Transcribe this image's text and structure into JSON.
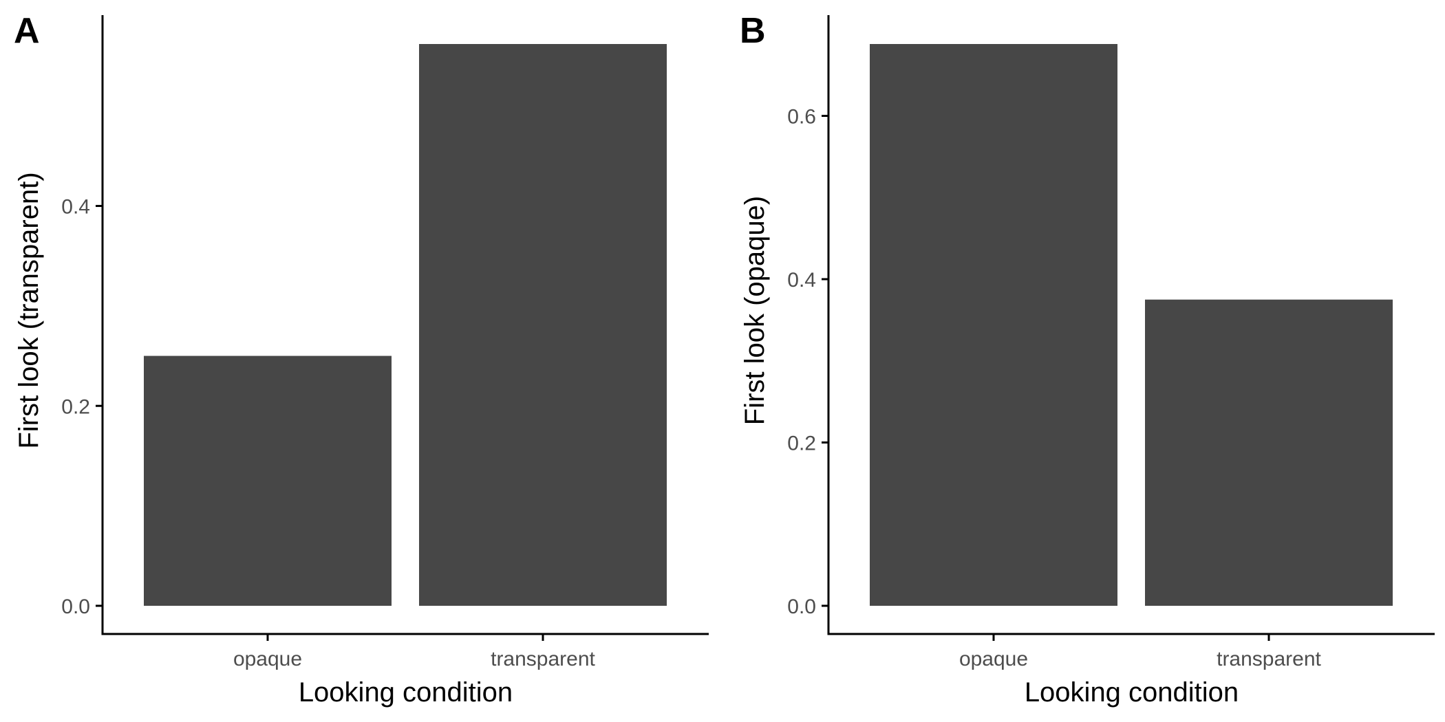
{
  "colors": {
    "bar_fill": "#474747",
    "axis": "#000000",
    "tick_text": "#4d4d4d",
    "background": "#ffffff"
  },
  "chart_data": [
    {
      "type": "bar",
      "panel_label": "A",
      "categories": [
        "opaque",
        "transparent"
      ],
      "values": [
        0.25,
        0.562
      ],
      "xlabel": "Looking condition",
      "ylabel": "First look (transparent)",
      "ylim": [
        0,
        0.562
      ],
      "yticks": [
        0.0,
        0.2,
        0.4
      ],
      "ytick_labels": [
        "0.0",
        "0.2",
        "0.4"
      ],
      "grid": false
    },
    {
      "type": "bar",
      "panel_label": "B",
      "categories": [
        "opaque",
        "transparent"
      ],
      "values": [
        0.688,
        0.375
      ],
      "xlabel": "Looking condition",
      "ylabel": "First look (opaque)",
      "ylim": [
        0,
        0.688
      ],
      "yticks": [
        0.0,
        0.2,
        0.4,
        0.6
      ],
      "ytick_labels": [
        "0.0",
        "0.2",
        "0.4",
        "0.6"
      ],
      "grid": false
    }
  ]
}
